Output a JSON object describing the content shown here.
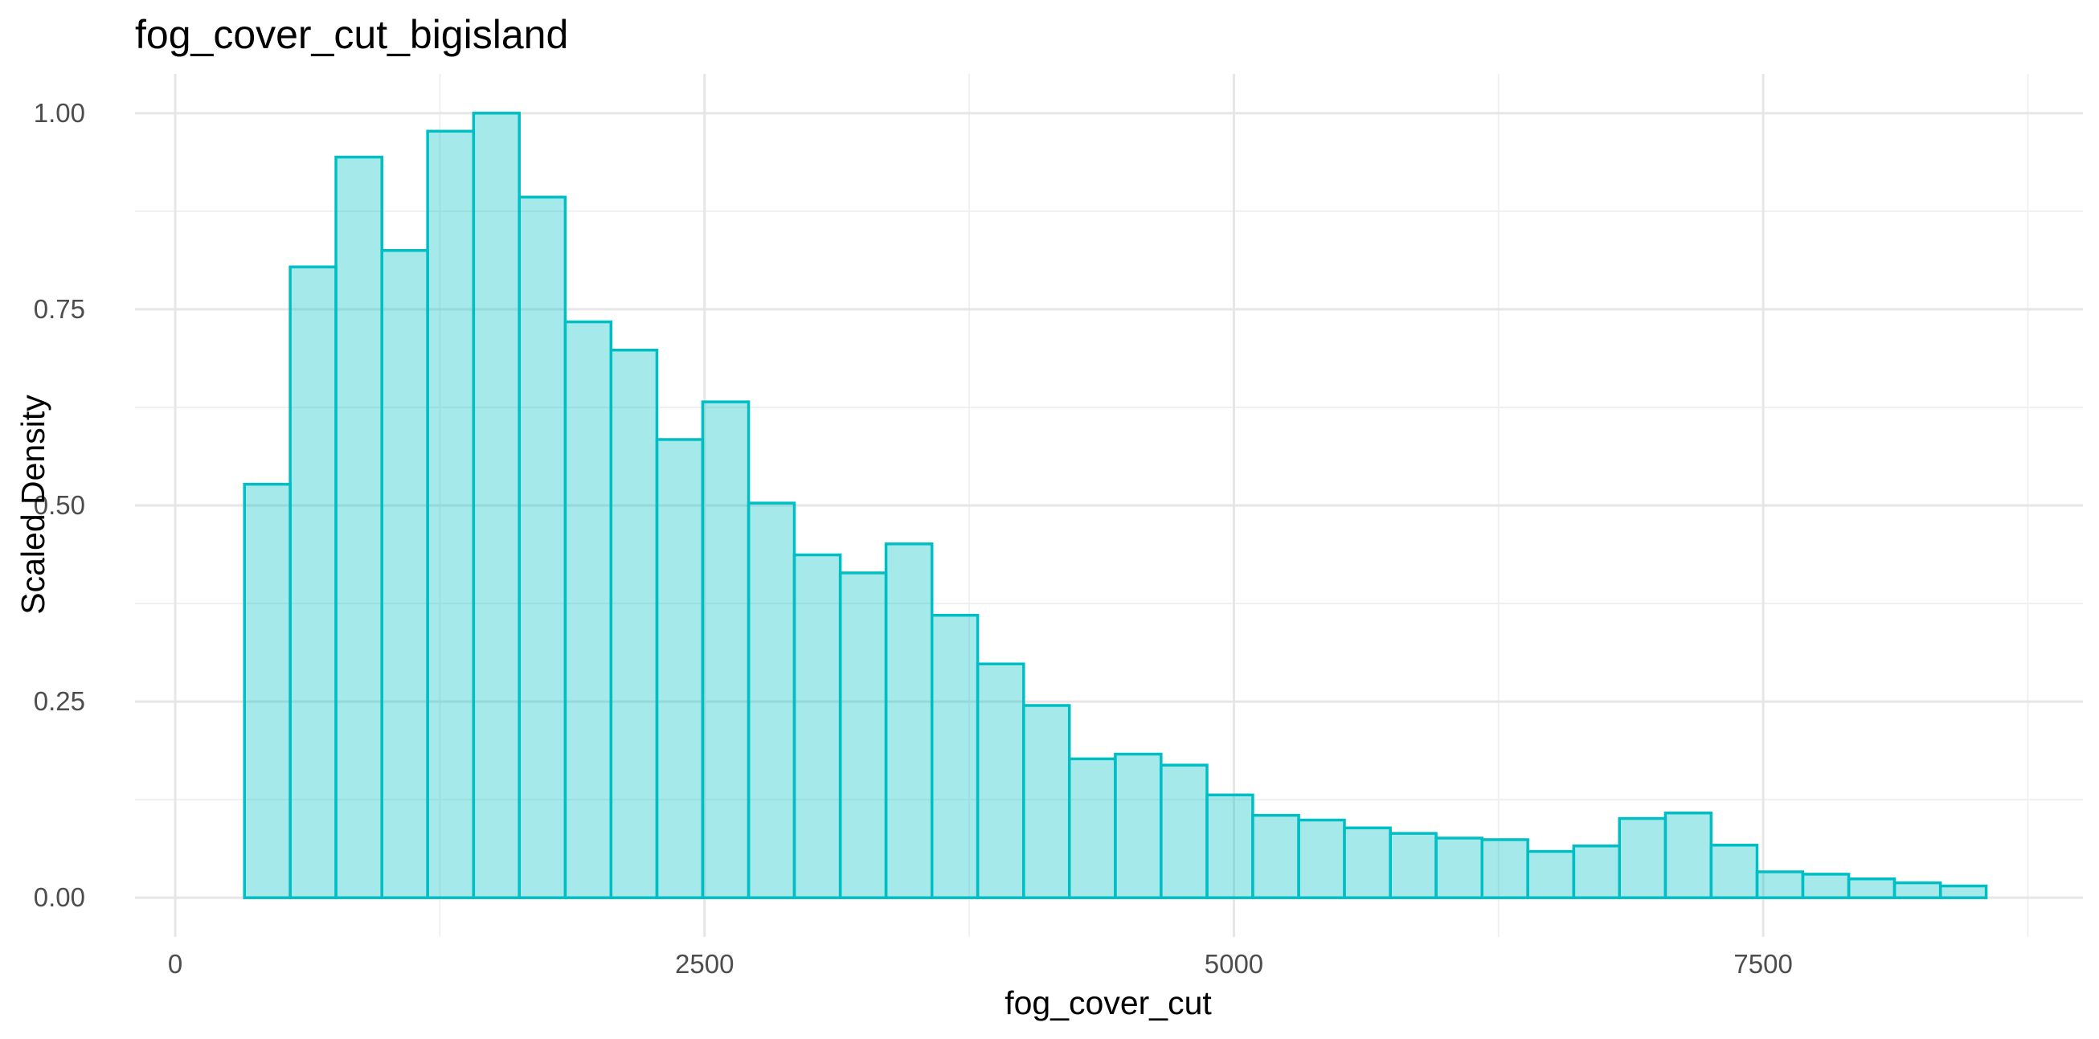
{
  "chart_data": {
    "type": "bar",
    "subtype": "histogram",
    "title": "fog_cover_cut_bigisland",
    "xlabel": "fog_cover_cut",
    "ylabel": "Scaled Density",
    "xlim": [
      -190,
      9010
    ],
    "ylim": [
      -0.05,
      1.05
    ],
    "x_ticks": [
      0,
      2500,
      5000,
      7500
    ],
    "x_tick_labels": [
      "0",
      "2500",
      "5000",
      "7500"
    ],
    "x_minor_ticks": [
      1250,
      3750,
      6250,
      8750
    ],
    "y_ticks": [
      0,
      0.25,
      0.5,
      0.75,
      1.0
    ],
    "y_tick_labels": [
      "0.00",
      "0.25",
      "0.50",
      "0.75",
      "1.00"
    ],
    "y_minor_ticks": [
      0.125,
      0.375,
      0.625,
      0.875
    ],
    "grid": true,
    "legend": "none",
    "colors": {
      "fill": "#00BFC4",
      "fill_opacity": 0.35,
      "outline": "#00BFC4"
    },
    "bin_width": 216.5,
    "bins": [
      {
        "x0": 327,
        "x1": 543,
        "value": 0.527
      },
      {
        "x0": 543,
        "x1": 759,
        "value": 0.804
      },
      {
        "x0": 759,
        "x1": 976,
        "value": 0.944
      },
      {
        "x0": 976,
        "x1": 1192,
        "value": 0.825
      },
      {
        "x0": 1192,
        "x1": 1409,
        "value": 0.977
      },
      {
        "x0": 1409,
        "x1": 1625,
        "value": 1.0
      },
      {
        "x0": 1625,
        "x1": 1842,
        "value": 0.893
      },
      {
        "x0": 1842,
        "x1": 2058,
        "value": 0.734
      },
      {
        "x0": 2058,
        "x1": 2275,
        "value": 0.698
      },
      {
        "x0": 2275,
        "x1": 2491,
        "value": 0.584
      },
      {
        "x0": 2491,
        "x1": 2708,
        "value": 0.632
      },
      {
        "x0": 2708,
        "x1": 2924,
        "value": 0.503
      },
      {
        "x0": 2924,
        "x1": 3141,
        "value": 0.437
      },
      {
        "x0": 3141,
        "x1": 3357,
        "value": 0.414
      },
      {
        "x0": 3357,
        "x1": 3574,
        "value": 0.451
      },
      {
        "x0": 3574,
        "x1": 3790,
        "value": 0.36
      },
      {
        "x0": 3790,
        "x1": 4007,
        "value": 0.298
      },
      {
        "x0": 4007,
        "x1": 4223,
        "value": 0.245
      },
      {
        "x0": 4223,
        "x1": 4440,
        "value": 0.177
      },
      {
        "x0": 4440,
        "x1": 4656,
        "value": 0.183
      },
      {
        "x0": 4656,
        "x1": 4873,
        "value": 0.169
      },
      {
        "x0": 4873,
        "x1": 5089,
        "value": 0.131
      },
      {
        "x0": 5089,
        "x1": 5306,
        "value": 0.105
      },
      {
        "x0": 5306,
        "x1": 5522,
        "value": 0.099
      },
      {
        "x0": 5522,
        "x1": 5739,
        "value": 0.089
      },
      {
        "x0": 5739,
        "x1": 5955,
        "value": 0.082
      },
      {
        "x0": 5955,
        "x1": 6172,
        "value": 0.076
      },
      {
        "x0": 6172,
        "x1": 6388,
        "value": 0.074
      },
      {
        "x0": 6388,
        "x1": 6605,
        "value": 0.059
      },
      {
        "x0": 6605,
        "x1": 6821,
        "value": 0.066
      },
      {
        "x0": 6821,
        "x1": 7038,
        "value": 0.101
      },
      {
        "x0": 7038,
        "x1": 7254,
        "value": 0.108
      },
      {
        "x0": 7254,
        "x1": 7471,
        "value": 0.067
      },
      {
        "x0": 7471,
        "x1": 7687,
        "value": 0.033
      },
      {
        "x0": 7687,
        "x1": 7904,
        "value": 0.03
      },
      {
        "x0": 7904,
        "x1": 8120,
        "value": 0.024
      },
      {
        "x0": 8120,
        "x1": 8337,
        "value": 0.019
      },
      {
        "x0": 8337,
        "x1": 8553,
        "value": 0.015
      }
    ]
  }
}
